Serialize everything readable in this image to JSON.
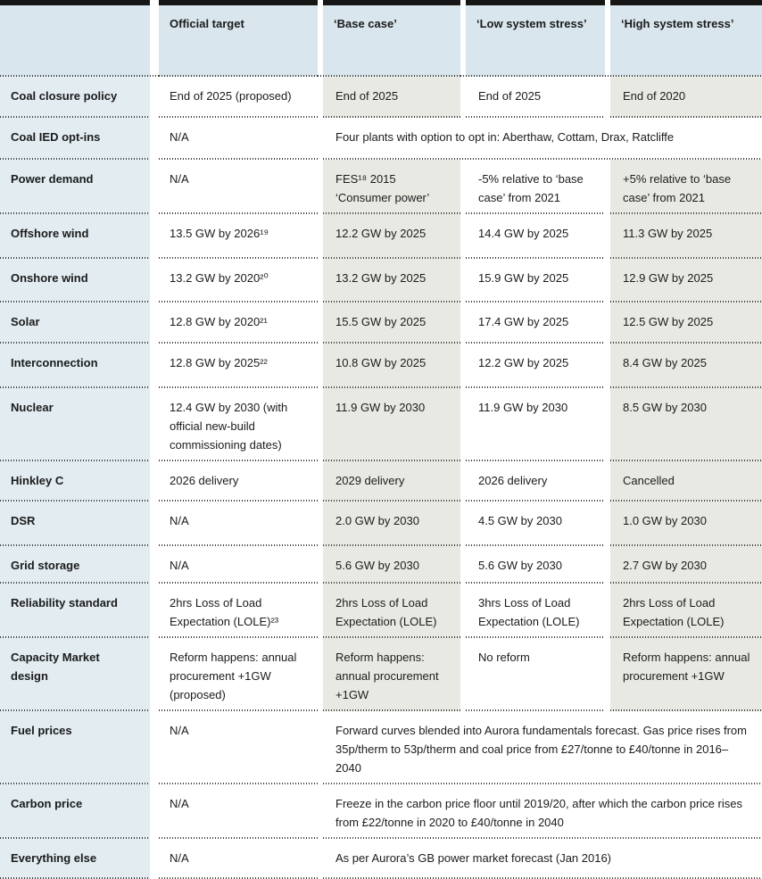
{
  "colors": {
    "header_bg": "#d9e6ed",
    "label_column_bg": "#e2ecf1",
    "tinted_column_bg": "#e9e9e4",
    "white_column_bg": "#ffffff",
    "top_bar": "#161616",
    "text": "#1b1b1b",
    "dotted_rule": "#3d3d3d"
  },
  "table": {
    "columns": [
      {
        "label": ""
      },
      {
        "label": "Official target"
      },
      {
        "label": "‘Base case’"
      },
      {
        "label": "‘Low system stress’"
      },
      {
        "label": "‘High system stress’"
      }
    ],
    "rows": [
      {
        "label": "Coal closure policy",
        "cells": [
          "End of 2025 (proposed)",
          "End of 2025",
          "End of 2025",
          "End of 2020"
        ]
      },
      {
        "label": "Coal IED opt-ins",
        "cells": [
          "N/A"
        ],
        "span_text": "Four plants with option to opt in: Aberthaw, Cottam, Drax, Ratcliffe"
      },
      {
        "label": "Power demand",
        "cells": [
          "N/A",
          "FES¹⁸ 2015 ‘Consumer power’",
          "-5% relative to ‘base case’ from 2021",
          "+5% relative to ‘base case’ from 2021"
        ]
      },
      {
        "label": "Offshore wind",
        "cells": [
          "13.5 GW by 2026¹⁹",
          "12.2 GW by 2025",
          "14.4 GW by 2025",
          "11.3 GW by 2025"
        ]
      },
      {
        "label": "Onshore wind",
        "cells": [
          "13.2 GW by 2020²⁰",
          "13.2 GW by 2025",
          "15.9 GW by 2025",
          "12.9 GW by 2025"
        ]
      },
      {
        "label": "Solar",
        "cells": [
          "12.8 GW by 2020²¹",
          "15.5 GW by 2025",
          "17.4 GW by 2025",
          "12.5 GW by 2025"
        ]
      },
      {
        "label": "Interconnection",
        "cells": [
          "12.8 GW by 2025²²",
          "10.8 GW by 2025",
          "12.2 GW by 2025",
          "8.4 GW by 2025"
        ]
      },
      {
        "label": "Nuclear",
        "cells": [
          "12.4 GW by 2030 (with official new-build commissioning dates)",
          "11.9 GW by 2030",
          "11.9 GW by 2030",
          "8.5 GW by 2030"
        ]
      },
      {
        "label": "Hinkley C",
        "cells": [
          "2026 delivery",
          "2029 delivery",
          "2026 delivery",
          "Cancelled"
        ]
      },
      {
        "label": "DSR",
        "cells": [
          "N/A",
          "2.0 GW by 2030",
          "4.5 GW by 2030",
          "1.0 GW by 2030"
        ]
      },
      {
        "label": "Grid storage",
        "cells": [
          "N/A",
          "5.6 GW by 2030",
          "5.6 GW by 2030",
          "2.7 GW by 2030"
        ]
      },
      {
        "label": "Reliability standard",
        "cells": [
          "2hrs Loss of Load Expectation (LOLE)²³",
          "2hrs Loss of Load Expectation (LOLE)",
          "3hrs Loss of Load Expectation (LOLE)",
          "2hrs Loss of Load Expectation (LOLE)"
        ]
      },
      {
        "label": "Capacity Market design",
        "cells": [
          "Reform happens: annual procurement +1GW (proposed)",
          "Reform happens: annual procurement +1GW",
          "No reform",
          "Reform happens: annual procurement +1GW"
        ]
      },
      {
        "label": "Fuel prices",
        "cells": [
          "N/A"
        ],
        "span_text": "Forward curves blended into Aurora fundamentals forecast. Gas price rises from 35p/therm to 53p/therm and coal price from £27/tonne to £40/tonne in 2016–2040"
      },
      {
        "label": "Carbon price",
        "cells": [
          "N/A"
        ],
        "span_text": "Freeze in the carbon price floor until 2019/20, after which the carbon price rises from £22/tonne in 2020 to £40/tonne in 2040"
      },
      {
        "label": "Everything else",
        "cells": [
          "N/A"
        ],
        "span_text": "As per Aurora’s GB power market forecast (Jan 2016)"
      }
    ]
  }
}
